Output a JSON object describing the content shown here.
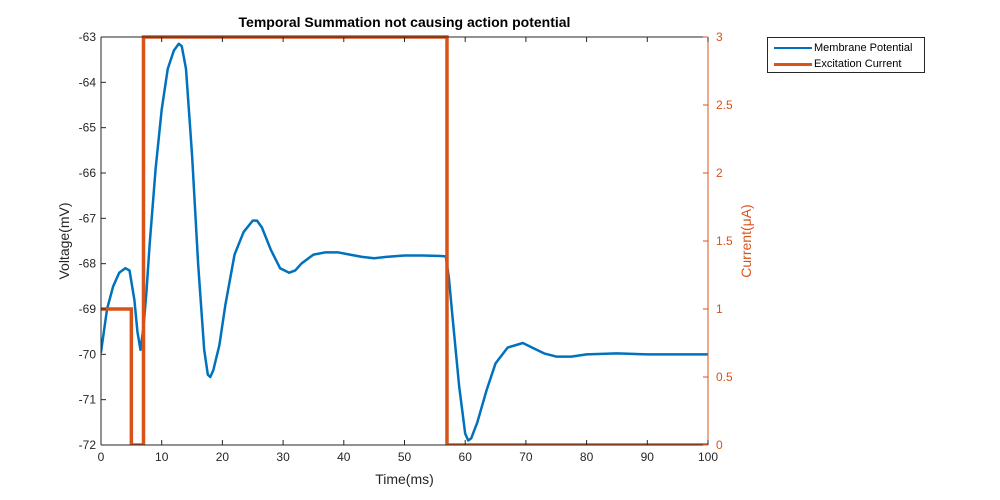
{
  "chart_data": {
    "type": "line",
    "title": "Temporal Summation not causing action potential",
    "xlabel": "Time(ms)",
    "ylabel_left": "Voltage(mV)",
    "ylabel_right": "Current(μA)",
    "xlim": [
      0,
      100
    ],
    "ylim_left": [
      -72,
      -63
    ],
    "ylim_right": [
      0,
      3
    ],
    "xticks": [
      "0",
      "10",
      "20",
      "30",
      "40",
      "50",
      "60",
      "70",
      "80",
      "90",
      "100"
    ],
    "yticks_left": [
      "-72",
      "-71",
      "-70",
      "-69",
      "-68",
      "-67",
      "-66",
      "-65",
      "-64",
      "-63"
    ],
    "yticks_right": [
      "0",
      "0.5",
      "1",
      "1.5",
      "2",
      "2.5",
      "3"
    ],
    "grid": false,
    "legend_position": "outside-top-right",
    "series": [
      {
        "name": "Membrane Potential",
        "axis": "left",
        "color": "#0072BD",
        "x": [
          0,
          1,
          2,
          3,
          4,
          4.7,
          5.5,
          6,
          6.5,
          7,
          7.5,
          8,
          9,
          10,
          11,
          12,
          12.8,
          13.3,
          14,
          15,
          16,
          17,
          17.6,
          18,
          18.5,
          19.5,
          20.5,
          22,
          23.5,
          25,
          25.7,
          26.5,
          28,
          29.5,
          31,
          32,
          33,
          35,
          37,
          39,
          41,
          43,
          45,
          47,
          50,
          53,
          56,
          56.8,
          57.3,
          58,
          59,
          60,
          60.5,
          61,
          62,
          63.5,
          65,
          67,
          69.5,
          71,
          73,
          75,
          77.5,
          80,
          85,
          90,
          95,
          100
        ],
        "y": [
          -69.95,
          -69.0,
          -68.5,
          -68.2,
          -68.1,
          -68.15,
          -68.8,
          -69.5,
          -69.9,
          -69.4,
          -68.6,
          -67.6,
          -65.9,
          -64.6,
          -63.7,
          -63.3,
          -63.15,
          -63.2,
          -63.7,
          -65.6,
          -68.0,
          -69.9,
          -70.45,
          -70.5,
          -70.35,
          -69.8,
          -68.9,
          -67.8,
          -67.3,
          -67.05,
          -67.05,
          -67.2,
          -67.7,
          -68.1,
          -68.2,
          -68.15,
          -68.0,
          -67.8,
          -67.75,
          -67.75,
          -67.8,
          -67.85,
          -67.88,
          -67.85,
          -67.82,
          -67.82,
          -67.83,
          -67.84,
          -68.3,
          -69.3,
          -70.7,
          -71.75,
          -71.9,
          -71.85,
          -71.5,
          -70.8,
          -70.2,
          -69.85,
          -69.75,
          -69.85,
          -69.98,
          -70.05,
          -70.05,
          -70.0,
          -69.98,
          -70.0,
          -70.0,
          -70.0
        ]
      },
      {
        "name": "Excitation Current",
        "axis": "right",
        "color": "#D95319",
        "x": [
          0,
          5,
          5,
          7,
          7,
          57,
          57,
          100
        ],
        "y": [
          1,
          1,
          0,
          0,
          3,
          3,
          0,
          0
        ]
      }
    ]
  }
}
